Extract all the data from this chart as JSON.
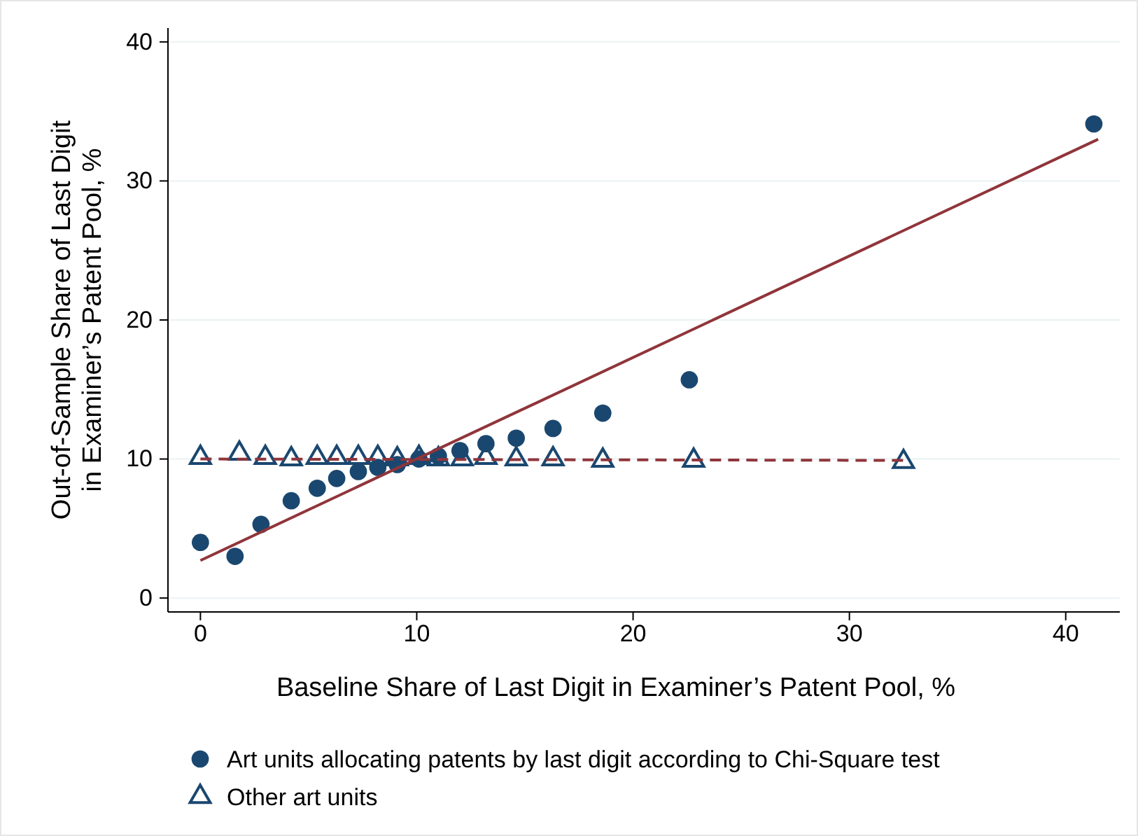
{
  "chart_data": {
    "type": "scatter",
    "xlabel": "Baseline Share of Last Digit in Examiner’s Patent Pool, %",
    "ylabel": "Out-of-Sample Share of Last Digit in Examiner’s Patent Pool, %",
    "xlim": [
      -1.5,
      42.5
    ],
    "ylim": [
      -1,
      41
    ],
    "xticks": [
      0,
      10,
      20,
      30,
      40
    ],
    "yticks": [
      0,
      10,
      20,
      30,
      40
    ],
    "grid": "y",
    "legend": "bottom",
    "series": [
      {
        "name": "Art units allocating patents by last digit according to Chi-Square test",
        "color": "#1a476f",
        "marker": "circle",
        "x": [
          0,
          1.6,
          2.8,
          4.2,
          5.4,
          6.3,
          7.3,
          8.2,
          9.1,
          10.1,
          11.0,
          12.0,
          13.2,
          14.6,
          16.3,
          18.6,
          22.6,
          41.3
        ],
        "values": [
          4.0,
          3.0,
          5.3,
          7.0,
          7.9,
          8.6,
          9.1,
          9.4,
          9.6,
          10.0,
          10.2,
          10.6,
          11.1,
          11.5,
          12.2,
          13.3,
          15.7,
          34.1
        ]
      },
      {
        "name": "Other art units",
        "color": "#1a476f",
        "marker": "triangle",
        "x": [
          0,
          1.8,
          3.0,
          4.2,
          5.4,
          6.3,
          7.3,
          8.2,
          9.1,
          10.1,
          11.0,
          12.1,
          13.2,
          14.6,
          16.3,
          18.6,
          22.8,
          32.5
        ],
        "values": [
          10.1,
          10.4,
          10.1,
          10.0,
          10.1,
          10.1,
          10.1,
          10.1,
          10.0,
          10.1,
          10.0,
          10.0,
          10.1,
          10.0,
          10.0,
          9.9,
          9.9,
          9.8
        ]
      },
      {
        "type": "line",
        "color": "#90353b",
        "line_style": "solid",
        "x": [
          0,
          41.5
        ],
        "values": [
          2.7,
          33.0
        ]
      },
      {
        "type": "line",
        "color": "#90353b",
        "line_style": "dashed",
        "x": [
          0,
          32.5
        ],
        "values": [
          10.0,
          9.9
        ]
      }
    ]
  }
}
